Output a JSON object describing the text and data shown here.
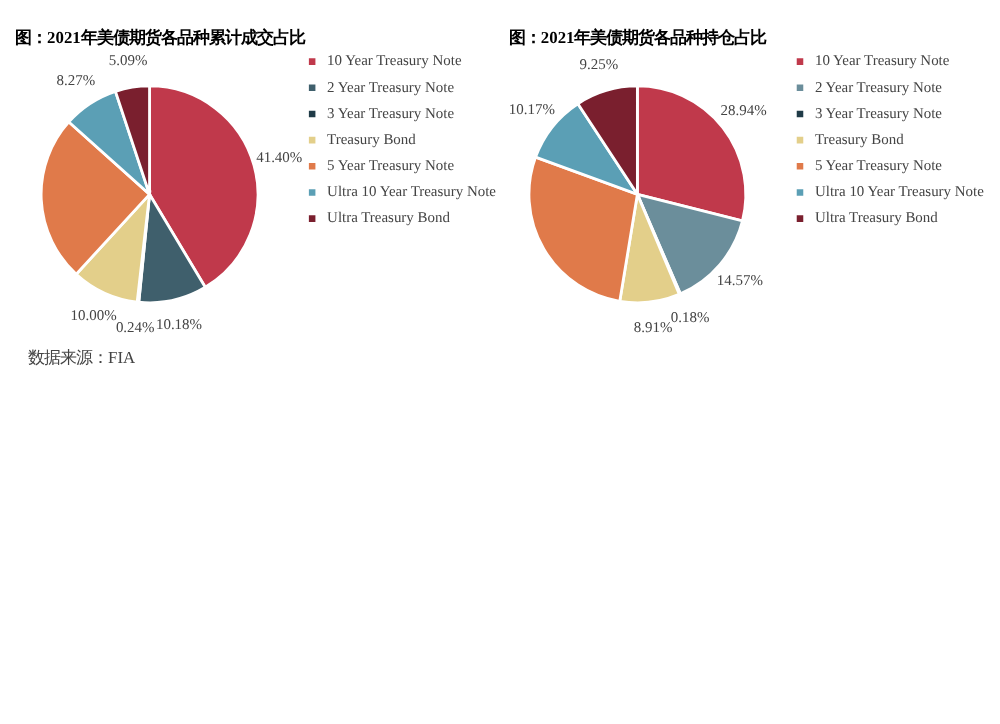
{
  "chart_data": [
    {
      "type": "pie",
      "title": "图：2021年美债期货各品种累计成交占比",
      "categories": [
        "10 Year Treasury Note",
        "2 Year Treasury Note",
        "3 Year Treasury Note",
        "Treasury Bond",
        "5 Year Treasury Note",
        "Ultra 10 Year Treasury Note",
        "Ultra Treasury Bond"
      ],
      "values": [
        41.4,
        10.18,
        0.24,
        10.0,
        24.82,
        8.27,
        5.09
      ],
      "value_labels": [
        "41.40%",
        "10.18%",
        "0.24%",
        "10.00%",
        null,
        "8.27%",
        "5.09%"
      ],
      "colors": [
        "#c0394b",
        "#3f5f6c",
        "#1f3b47",
        "#e3cf8a",
        "#e07a4a",
        "#5b9fb5",
        "#7a1f2e"
      ],
      "legend": "right",
      "annotations": [
        "数据来源：FIA"
      ]
    },
    {
      "type": "pie",
      "title": "图：2021年美债期货各品种持仓占比",
      "categories": [
        "10 Year Treasury Note",
        "2 Year Treasury Note",
        "3 Year Treasury Note",
        "Treasury Bond",
        "5 Year Treasury Note",
        "Ultra 10 Year Treasury Note",
        "Ultra Treasury Bond"
      ],
      "values": [
        28.94,
        14.57,
        0.18,
        8.91,
        27.98,
        10.17,
        9.25
      ],
      "value_labels": [
        "28.94%",
        "14.57%",
        "0.18%",
        "8.91%",
        null,
        "10.17%",
        "9.25%"
      ],
      "colors": [
        "#c0394b",
        "#6b8e9b",
        "#1f3b47",
        "#e3cf8a",
        "#e07a4a",
        "#5b9fb5",
        "#7a1f2e"
      ],
      "legend": "right"
    }
  ]
}
